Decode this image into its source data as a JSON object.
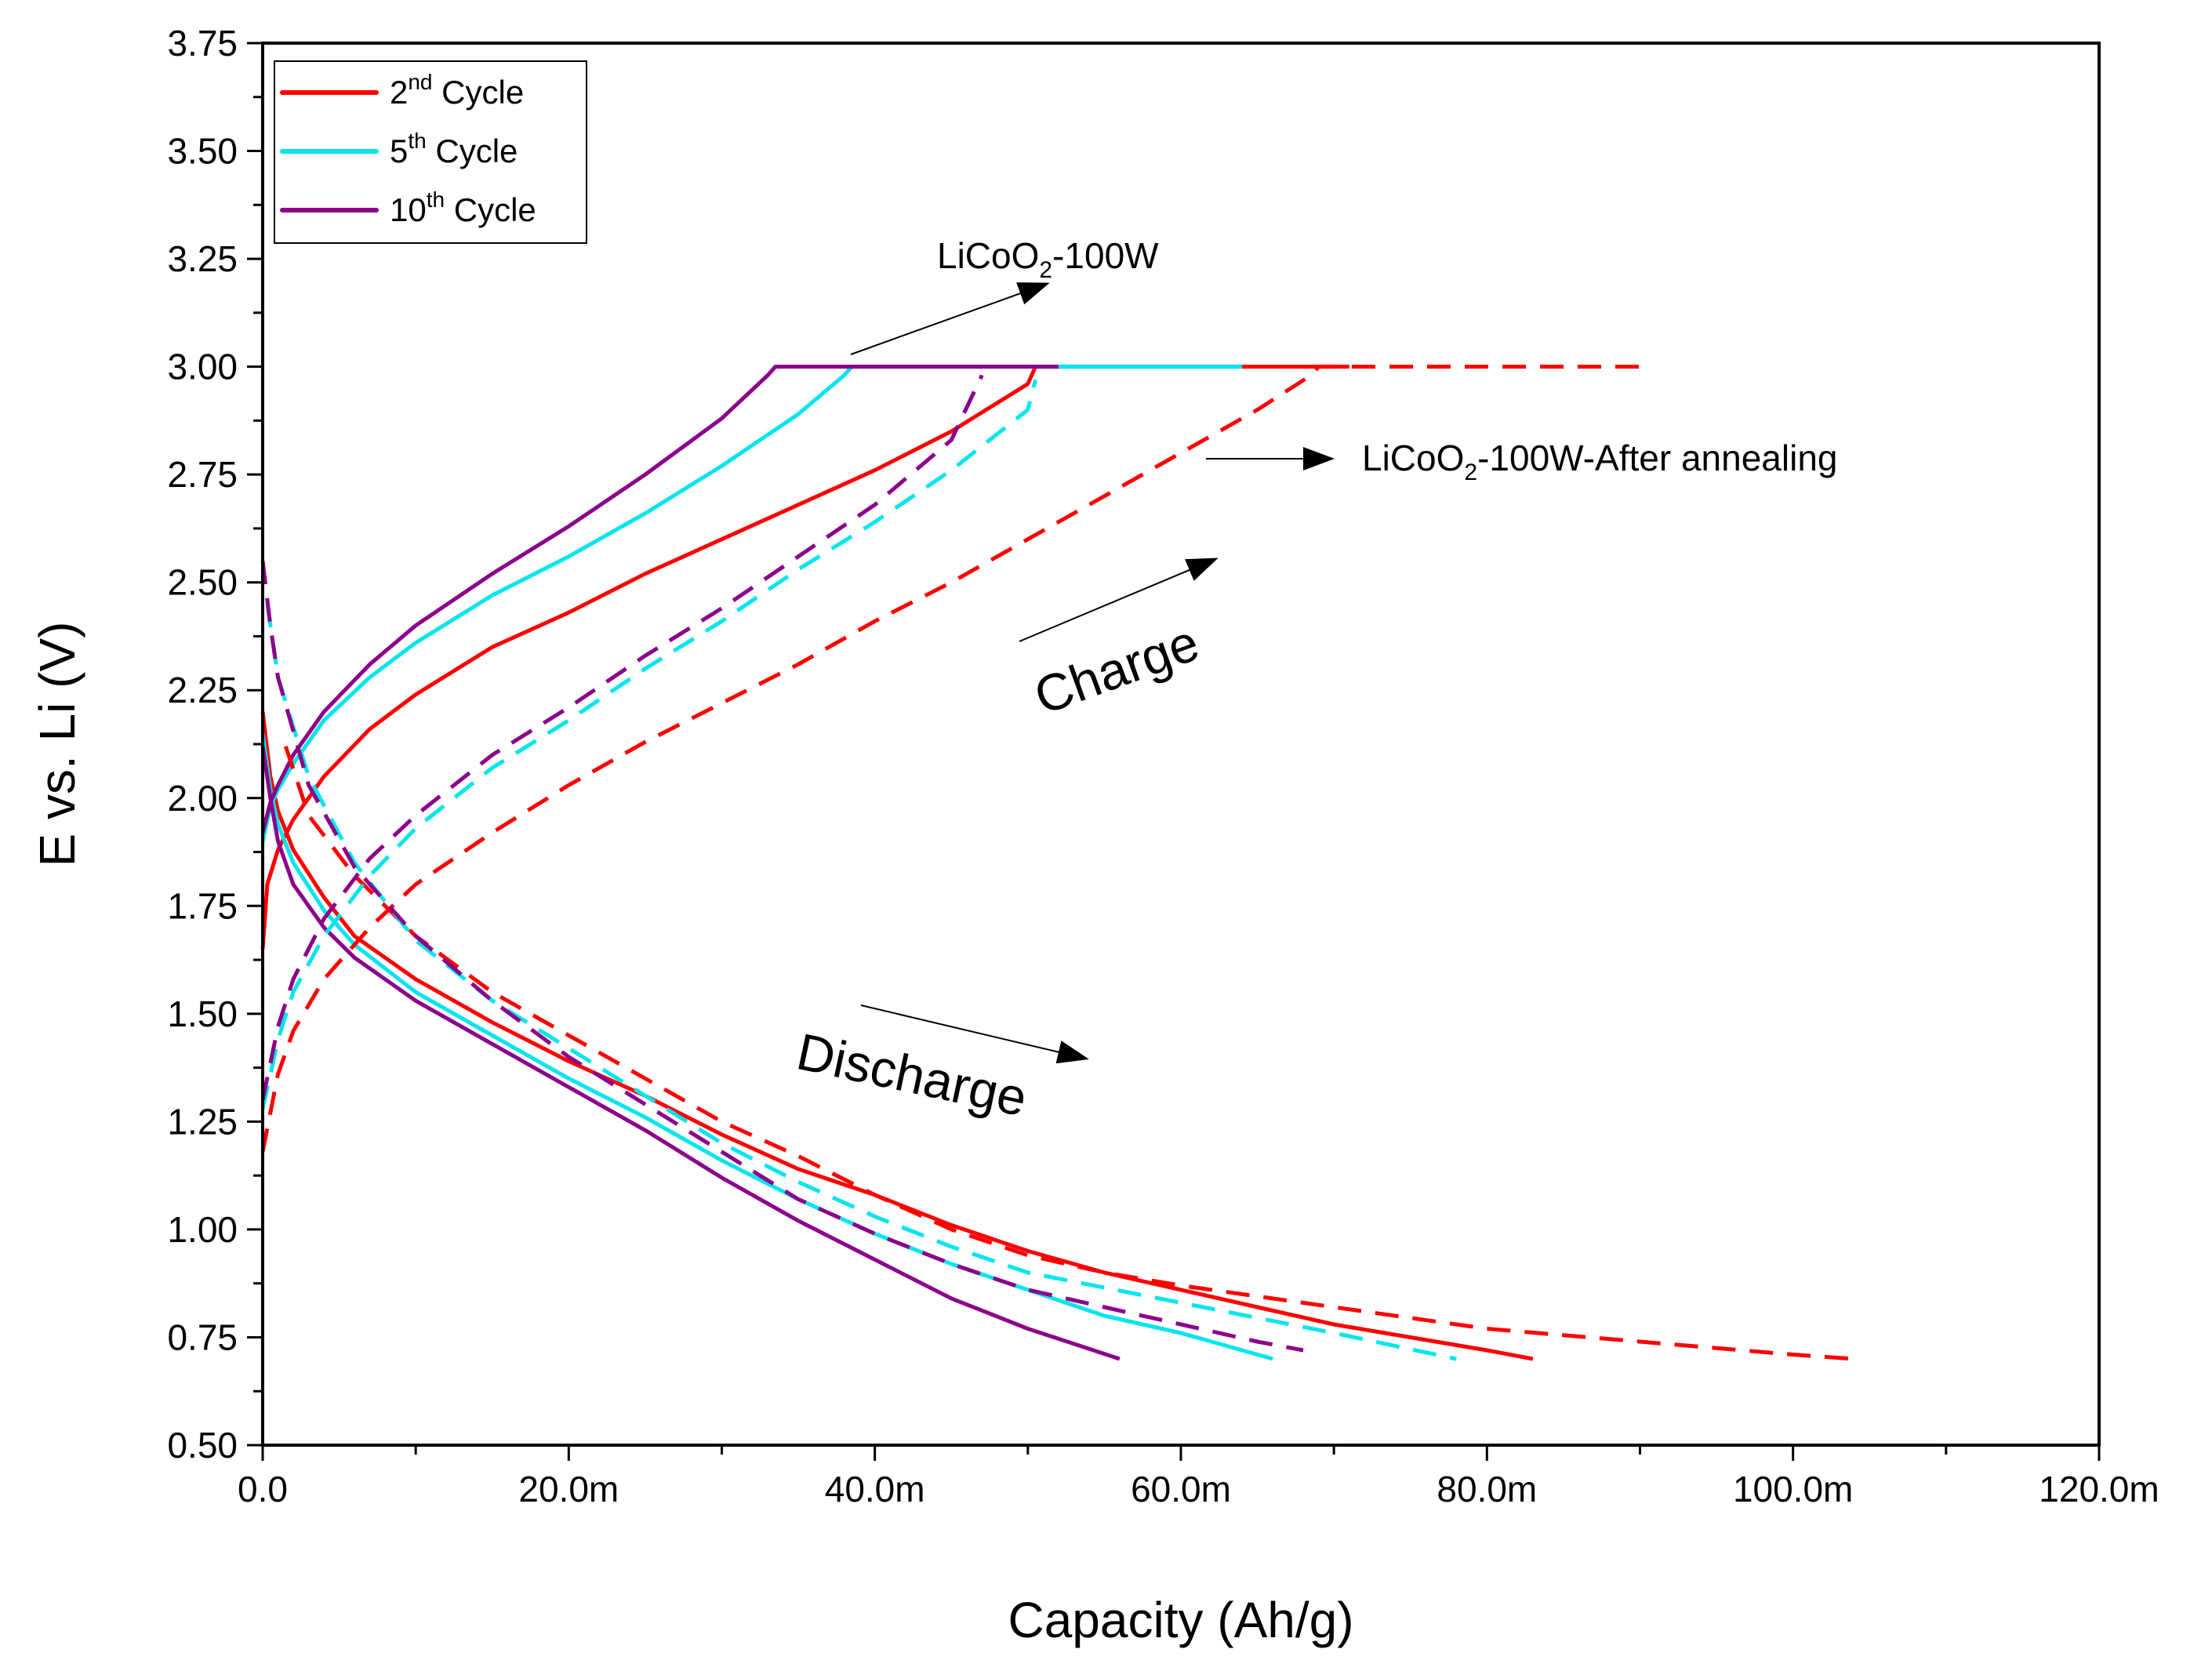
{
  "chart_data": {
    "type": "line",
    "xlabel": "Capacity (Ah/g)",
    "ylabel": "E vs. Li (V)",
    "xlim": [
      0,
      0.12
    ],
    "ylim": [
      0.5,
      3.75
    ],
    "x_ticks": [
      {
        "value": 0,
        "label": "0.0"
      },
      {
        "value": 0.02,
        "label": "20.0m"
      },
      {
        "value": 0.04,
        "label": "40.0m"
      },
      {
        "value": 0.06,
        "label": "60.0m"
      },
      {
        "value": 0.08,
        "label": "80.0m"
      },
      {
        "value": 0.1,
        "label": "100.0m"
      },
      {
        "value": 0.12,
        "label": "120.0m"
      }
    ],
    "y_ticks": [
      {
        "value": 0.5,
        "label": "0.50"
      },
      {
        "value": 0.75,
        "label": "0.75"
      },
      {
        "value": 1.0,
        "label": "1.00"
      },
      {
        "value": 1.25,
        "label": "1.25"
      },
      {
        "value": 1.5,
        "label": "1.50"
      },
      {
        "value": 1.75,
        "label": "1.75"
      },
      {
        "value": 2.0,
        "label": "2.00"
      },
      {
        "value": 2.25,
        "label": "2.25"
      },
      {
        "value": 2.5,
        "label": "2.50"
      },
      {
        "value": 2.75,
        "label": "2.75"
      },
      {
        "value": 3.0,
        "label": "3.00"
      },
      {
        "value": 3.25,
        "label": "3.25"
      },
      {
        "value": 3.5,
        "label": "3.50"
      },
      {
        "value": 3.75,
        "label": "3.75"
      }
    ],
    "legend": {
      "position": "top-left",
      "entries": [
        {
          "num": "2",
          "sup": "nd",
          "rest": " Cycle",
          "color": "#ff0000"
        },
        {
          "num": "5",
          "sup": "th",
          "rest": " Cycle",
          "color": "#00e5ee"
        },
        {
          "num": "10",
          "sup": "th",
          "rest": " Cycle",
          "color": "#8b008b"
        }
      ]
    },
    "series": [
      {
        "name": "2nd Cycle charge (LiCoO2-100W)",
        "color": "#ff0000",
        "style": "solid",
        "points": [
          [
            0,
            1.65
          ],
          [
            0.0003,
            1.8
          ],
          [
            0.001,
            1.88
          ],
          [
            0.002,
            1.95
          ],
          [
            0.004,
            2.05
          ],
          [
            0.007,
            2.16
          ],
          [
            0.01,
            2.24
          ],
          [
            0.015,
            2.35
          ],
          [
            0.02,
            2.43
          ],
          [
            0.025,
            2.52
          ],
          [
            0.03,
            2.6
          ],
          [
            0.035,
            2.68
          ],
          [
            0.04,
            2.76
          ],
          [
            0.045,
            2.85
          ],
          [
            0.05,
            2.96
          ],
          [
            0.0505,
            3.0
          ],
          [
            0.055,
            3.0
          ],
          [
            0.071,
            3.0
          ]
        ]
      },
      {
        "name": "2nd Cycle discharge (LiCoO2-100W)",
        "color": "#ff0000",
        "style": "solid",
        "points": [
          [
            0,
            2.2
          ],
          [
            0.0005,
            2.05
          ],
          [
            0.001,
            1.97
          ],
          [
            0.002,
            1.88
          ],
          [
            0.004,
            1.77
          ],
          [
            0.006,
            1.68
          ],
          [
            0.01,
            1.58
          ],
          [
            0.015,
            1.48
          ],
          [
            0.02,
            1.39
          ],
          [
            0.025,
            1.31
          ],
          [
            0.03,
            1.22
          ],
          [
            0.035,
            1.14
          ],
          [
            0.04,
            1.08
          ],
          [
            0.045,
            1.01
          ],
          [
            0.05,
            0.95
          ],
          [
            0.055,
            0.9
          ],
          [
            0.06,
            0.86
          ],
          [
            0.065,
            0.82
          ],
          [
            0.07,
            0.78
          ],
          [
            0.075,
            0.75
          ],
          [
            0.08,
            0.72
          ],
          [
            0.083,
            0.7
          ]
        ]
      },
      {
        "name": "5th Cycle charge (LiCoO2-100W)",
        "color": "#00e5ee",
        "style": "solid",
        "points": [
          [
            0,
            1.9
          ],
          [
            0.0005,
            1.98
          ],
          [
            0.001,
            2.02
          ],
          [
            0.002,
            2.08
          ],
          [
            0.004,
            2.18
          ],
          [
            0.007,
            2.28
          ],
          [
            0.01,
            2.36
          ],
          [
            0.015,
            2.47
          ],
          [
            0.02,
            2.56
          ],
          [
            0.025,
            2.66
          ],
          [
            0.03,
            2.77
          ],
          [
            0.035,
            2.89
          ],
          [
            0.038,
            2.98
          ],
          [
            0.0385,
            3.0
          ],
          [
            0.045,
            3.0
          ],
          [
            0.064,
            3.0
          ]
        ]
      },
      {
        "name": "5th Cycle discharge (LiCoO2-100W)",
        "color": "#00e5ee",
        "style": "solid",
        "points": [
          [
            0,
            2.15
          ],
          [
            0.0005,
            2.02
          ],
          [
            0.001,
            1.94
          ],
          [
            0.002,
            1.85
          ],
          [
            0.004,
            1.74
          ],
          [
            0.006,
            1.66
          ],
          [
            0.01,
            1.55
          ],
          [
            0.015,
            1.45
          ],
          [
            0.02,
            1.35
          ],
          [
            0.025,
            1.26
          ],
          [
            0.03,
            1.16
          ],
          [
            0.035,
            1.07
          ],
          [
            0.04,
            0.99
          ],
          [
            0.045,
            0.92
          ],
          [
            0.05,
            0.86
          ],
          [
            0.055,
            0.8
          ],
          [
            0.06,
            0.76
          ],
          [
            0.066,
            0.7
          ]
        ]
      },
      {
        "name": "10th Cycle charge (LiCoO2-100W)",
        "color": "#8b008b",
        "style": "solid",
        "points": [
          [
            0,
            1.92
          ],
          [
            0.0005,
            1.99
          ],
          [
            0.001,
            2.03
          ],
          [
            0.002,
            2.1
          ],
          [
            0.004,
            2.2
          ],
          [
            0.007,
            2.31
          ],
          [
            0.01,
            2.4
          ],
          [
            0.015,
            2.52
          ],
          [
            0.02,
            2.63
          ],
          [
            0.025,
            2.75
          ],
          [
            0.03,
            2.88
          ],
          [
            0.033,
            2.98
          ],
          [
            0.0335,
            3.0
          ],
          [
            0.04,
            3.0
          ],
          [
            0.052,
            3.0
          ]
        ]
      },
      {
        "name": "10th Cycle discharge (LiCoO2-100W)",
        "color": "#8b008b",
        "style": "solid",
        "points": [
          [
            0,
            2.12
          ],
          [
            0.0005,
            2.0
          ],
          [
            0.001,
            1.9
          ],
          [
            0.002,
            1.8
          ],
          [
            0.004,
            1.7
          ],
          [
            0.006,
            1.63
          ],
          [
            0.01,
            1.53
          ],
          [
            0.015,
            1.43
          ],
          [
            0.02,
            1.33
          ],
          [
            0.025,
            1.23
          ],
          [
            0.03,
            1.12
          ],
          [
            0.035,
            1.02
          ],
          [
            0.04,
            0.93
          ],
          [
            0.045,
            0.84
          ],
          [
            0.05,
            0.77
          ],
          [
            0.056,
            0.7
          ]
        ]
      },
      {
        "name": "2nd Cycle charge (After annealing)",
        "color": "#ff0000",
        "style": "dashed",
        "points": [
          [
            0,
            1.18
          ],
          [
            0.001,
            1.36
          ],
          [
            0.002,
            1.46
          ],
          [
            0.004,
            1.58
          ],
          [
            0.007,
            1.7
          ],
          [
            0.01,
            1.8
          ],
          [
            0.015,
            1.92
          ],
          [
            0.02,
            2.03
          ],
          [
            0.025,
            2.13
          ],
          [
            0.03,
            2.22
          ],
          [
            0.035,
            2.31
          ],
          [
            0.04,
            2.41
          ],
          [
            0.045,
            2.5
          ],
          [
            0.05,
            2.6
          ],
          [
            0.055,
            2.7
          ],
          [
            0.06,
            2.8
          ],
          [
            0.065,
            2.9
          ],
          [
            0.0685,
            2.98
          ],
          [
            0.069,
            3.0
          ],
          [
            0.08,
            3.0
          ],
          [
            0.09,
            3.0
          ]
        ]
      },
      {
        "name": "2nd Cycle discharge (After annealing)",
        "color": "#ff0000",
        "style": "dashed",
        "points": [
          [
            0.0015,
            2.12
          ],
          [
            0.003,
            1.96
          ],
          [
            0.006,
            1.82
          ],
          [
            0.01,
            1.68
          ],
          [
            0.015,
            1.55
          ],
          [
            0.02,
            1.45
          ],
          [
            0.025,
            1.35
          ],
          [
            0.03,
            1.25
          ],
          [
            0.035,
            1.17
          ],
          [
            0.04,
            1.08
          ],
          [
            0.045,
            1.0
          ],
          [
            0.05,
            0.94
          ],
          [
            0.055,
            0.9
          ],
          [
            0.06,
            0.87
          ],
          [
            0.07,
            0.82
          ],
          [
            0.08,
            0.77
          ],
          [
            0.09,
            0.74
          ],
          [
            0.1,
            0.71
          ],
          [
            0.104,
            0.7
          ]
        ]
      },
      {
        "name": "5th Cycle charge (After annealing)",
        "color": "#00e5ee",
        "style": "dashed",
        "points": [
          [
            0,
            1.28
          ],
          [
            0.001,
            1.44
          ],
          [
            0.002,
            1.55
          ],
          [
            0.004,
            1.68
          ],
          [
            0.007,
            1.82
          ],
          [
            0.01,
            1.93
          ],
          [
            0.015,
            2.07
          ],
          [
            0.02,
            2.18
          ],
          [
            0.025,
            2.3
          ],
          [
            0.03,
            2.41
          ],
          [
            0.035,
            2.53
          ],
          [
            0.04,
            2.64
          ],
          [
            0.045,
            2.76
          ],
          [
            0.05,
            2.9
          ],
          [
            0.0505,
            2.97
          ]
        ]
      },
      {
        "name": "5th Cycle discharge (After annealing)",
        "color": "#00e5ee",
        "style": "dashed",
        "points": [
          [
            0.0003,
            2.45
          ],
          [
            0.001,
            2.28
          ],
          [
            0.003,
            2.05
          ],
          [
            0.006,
            1.85
          ],
          [
            0.01,
            1.67
          ],
          [
            0.015,
            1.53
          ],
          [
            0.02,
            1.42
          ],
          [
            0.025,
            1.31
          ],
          [
            0.03,
            1.2
          ],
          [
            0.035,
            1.11
          ],
          [
            0.04,
            1.03
          ],
          [
            0.045,
            0.96
          ],
          [
            0.05,
            0.9
          ],
          [
            0.06,
            0.83
          ],
          [
            0.07,
            0.76
          ],
          [
            0.078,
            0.7
          ]
        ]
      },
      {
        "name": "10th Cycle charge (After annealing)",
        "color": "#8b008b",
        "style": "dashed",
        "points": [
          [
            0,
            1.3
          ],
          [
            0.001,
            1.47
          ],
          [
            0.002,
            1.58
          ],
          [
            0.004,
            1.72
          ],
          [
            0.007,
            1.86
          ],
          [
            0.01,
            1.96
          ],
          [
            0.015,
            2.1
          ],
          [
            0.02,
            2.21
          ],
          [
            0.025,
            2.33
          ],
          [
            0.03,
            2.44
          ],
          [
            0.035,
            2.56
          ],
          [
            0.04,
            2.68
          ],
          [
            0.045,
            2.83
          ],
          [
            0.047,
            2.98
          ]
        ]
      },
      {
        "name": "10th Cycle discharge (After annealing)",
        "color": "#8b008b",
        "style": "dashed",
        "points": [
          [
            0,
            2.55
          ],
          [
            0.0005,
            2.4
          ],
          [
            0.001,
            2.28
          ],
          [
            0.003,
            2.03
          ],
          [
            0.006,
            1.84
          ],
          [
            0.01,
            1.68
          ],
          [
            0.015,
            1.53
          ],
          [
            0.02,
            1.4
          ],
          [
            0.025,
            1.29
          ],
          [
            0.03,
            1.18
          ],
          [
            0.035,
            1.07
          ],
          [
            0.04,
            0.99
          ],
          [
            0.045,
            0.92
          ],
          [
            0.05,
            0.86
          ],
          [
            0.055,
            0.82
          ],
          [
            0.06,
            0.78
          ],
          [
            0.065,
            0.74
          ],
          [
            0.068,
            0.72
          ]
        ]
      }
    ],
    "annotations": [
      {
        "id": "lco100w",
        "label": "LiCoO",
        "sub": "2",
        "rest": "-100W"
      },
      {
        "id": "lco100w-annealed",
        "label": "LiCoO",
        "sub": "2",
        "rest": "-100W-After annealing"
      },
      {
        "id": "charge",
        "label": "Charge"
      },
      {
        "id": "discharge",
        "label": "Discharge"
      }
    ]
  }
}
